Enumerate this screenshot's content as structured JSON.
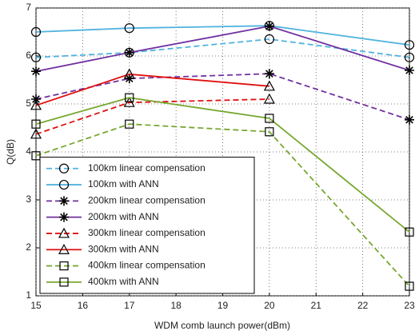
{
  "chart_data": {
    "type": "line",
    "x_label": "WDM comb launch power(dBm)",
    "y_label": "Q(dB)",
    "x": [
      15,
      17,
      20,
      23
    ],
    "xlim": [
      15,
      23
    ],
    "xticks": [
      15,
      16,
      17,
      18,
      19,
      20,
      21,
      22,
      23
    ],
    "ylim": [
      1,
      7
    ],
    "yticks": [
      1,
      2,
      3,
      4,
      5,
      6,
      7
    ],
    "grid": true,
    "legend": "lower left",
    "series": [
      {
        "name": "100km linear compensation",
        "color": "#4fb3e0",
        "dash": true,
        "marker": "circle",
        "values": [
          5.97,
          6.07,
          6.35,
          5.97
        ]
      },
      {
        "name": "100km with ANN",
        "color": "#4fb3e0",
        "dash": false,
        "marker": "circle",
        "values": [
          6.5,
          6.58,
          6.63,
          6.23
        ]
      },
      {
        "name": "200km linear compensation",
        "color": "#7030a0",
        "dash": true,
        "marker": "star",
        "values": [
          5.1,
          5.53,
          5.63,
          4.67
        ]
      },
      {
        "name": "200km with ANN",
        "color": "#7030a0",
        "dash": false,
        "marker": "star",
        "values": [
          5.68,
          6.07,
          6.62,
          5.7
        ]
      },
      {
        "name": "300km linear compensation",
        "color": "#e01010",
        "dash": true,
        "marker": "triangle",
        "values": [
          4.37,
          5.03,
          5.1,
          null
        ]
      },
      {
        "name": "300km with ANN",
        "color": "#e01010",
        "dash": false,
        "marker": "triangle",
        "values": [
          4.97,
          5.62,
          5.37,
          null
        ]
      },
      {
        "name": "400km linear compensation",
        "color": "#77a830",
        "dash": true,
        "marker": "square",
        "values": [
          3.92,
          4.58,
          4.42,
          1.2
        ]
      },
      {
        "name": "400km with ANN",
        "color": "#77a830",
        "dash": false,
        "marker": "square",
        "values": [
          4.58,
          5.13,
          4.7,
          2.33
        ]
      }
    ]
  }
}
